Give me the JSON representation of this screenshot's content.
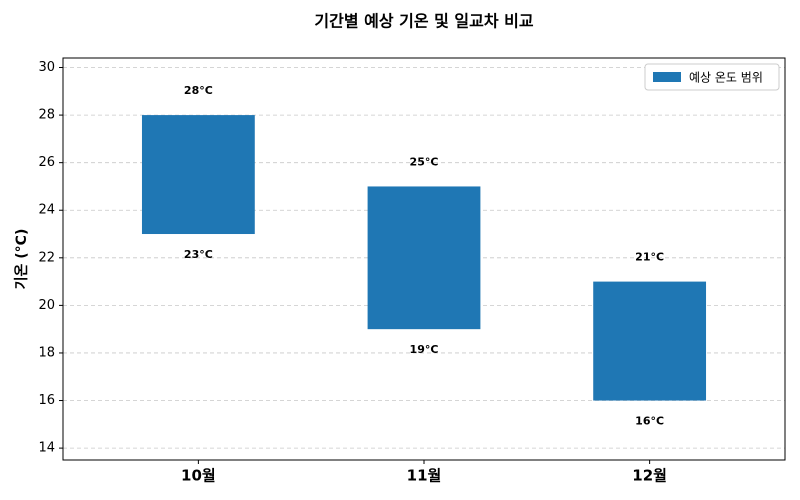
{
  "chart_data": {
    "type": "range_bar",
    "title": "기간별 예상 기온 및 일교차 비교",
    "y_label": "기온 (°C)",
    "categories": [
      "10월",
      "11월",
      "12월"
    ],
    "series": [
      {
        "name": "예상 온도 범위",
        "color": "#1f77b4",
        "lows": [
          23,
          19,
          16
        ],
        "highs": [
          28,
          25,
          21
        ],
        "low_labels": [
          "23°C",
          "19°C",
          "16°C"
        ],
        "high_labels": [
          "28°C",
          "25°C",
          "21°C"
        ]
      }
    ],
    "ylim": [
      13.5,
      30.4
    ],
    "yticks": [
      14,
      16,
      18,
      20,
      22,
      24,
      26,
      28,
      30
    ],
    "grid": true,
    "legend": "upper right"
  }
}
